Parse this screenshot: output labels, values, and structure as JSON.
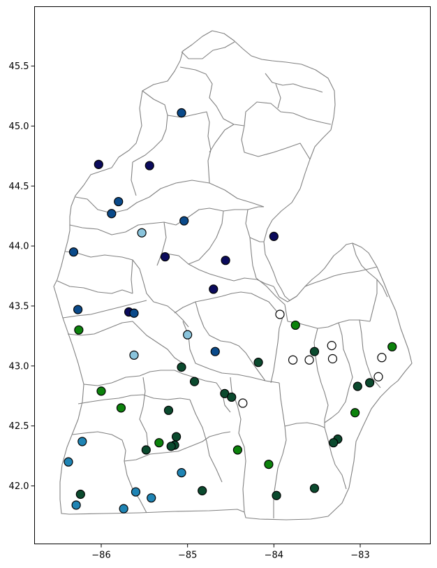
{
  "chart_data": {
    "type": "scatter",
    "title": "",
    "xlabel": "",
    "ylabel": "",
    "xlim": [
      -86.7,
      -82.3
    ],
    "ylim": [
      41.5,
      46.0
    ],
    "xticks": [
      -86,
      -85,
      -84,
      -83
    ],
    "yticks": [
      42.0,
      42.5,
      43.0,
      43.5,
      44.0,
      44.5,
      45.0,
      45.5
    ],
    "x_tick_labels": [
      "−86",
      "−85",
      "−84",
      "−83"
    ],
    "y_tick_labels": [
      "42.0",
      "42.5",
      "43.0",
      "43.5",
      "44.0",
      "44.5",
      "45.0",
      "45.5"
    ],
    "grid": false,
    "legend": "none",
    "basemap": "Michigan Lower Peninsula watershed boundaries",
    "colors": {
      "navy": "#0b0b5c",
      "dark_blue": "#0a4a8a",
      "blue": "#1f84b4",
      "light_blue": "#8ac4dc",
      "dark_green": "#0b4a2e",
      "green": "#0c820c",
      "white": "#ffffff",
      "outline": "#808080"
    },
    "points": [
      {
        "x": -85.07,
        "y": 45.11,
        "color": "dark_blue"
      },
      {
        "x": -86.03,
        "y": 44.68,
        "color": "navy"
      },
      {
        "x": -85.44,
        "y": 44.67,
        "color": "navy"
      },
      {
        "x": -85.8,
        "y": 44.37,
        "color": "dark_blue"
      },
      {
        "x": -85.88,
        "y": 44.27,
        "color": "dark_blue"
      },
      {
        "x": -85.04,
        "y": 44.21,
        "color": "dark_blue"
      },
      {
        "x": -85.53,
        "y": 44.11,
        "color": "light_blue"
      },
      {
        "x": -84.0,
        "y": 44.08,
        "color": "navy"
      },
      {
        "x": -86.32,
        "y": 43.95,
        "color": "dark_blue"
      },
      {
        "x": -85.26,
        "y": 43.91,
        "color": "navy"
      },
      {
        "x": -84.56,
        "y": 43.88,
        "color": "navy"
      },
      {
        "x": -84.7,
        "y": 43.64,
        "color": "navy"
      },
      {
        "x": -86.27,
        "y": 43.47,
        "color": "dark_blue"
      },
      {
        "x": -85.68,
        "y": 43.45,
        "color": "navy"
      },
      {
        "x": -85.62,
        "y": 43.44,
        "color": "dark_blue"
      },
      {
        "x": -83.93,
        "y": 43.43,
        "color": "white"
      },
      {
        "x": -83.75,
        "y": 43.34,
        "color": "green"
      },
      {
        "x": -86.26,
        "y": 43.3,
        "color": "green"
      },
      {
        "x": -85.0,
        "y": 43.26,
        "color": "light_blue"
      },
      {
        "x": -83.33,
        "y": 43.17,
        "color": "white"
      },
      {
        "x": -82.63,
        "y": 43.16,
        "color": "green"
      },
      {
        "x": -84.68,
        "y": 43.12,
        "color": "dark_blue"
      },
      {
        "x": -83.53,
        "y": 43.12,
        "color": "dark_green"
      },
      {
        "x": -85.62,
        "y": 43.09,
        "color": "light_blue"
      },
      {
        "x": -82.75,
        "y": 43.07,
        "color": "white"
      },
      {
        "x": -83.32,
        "y": 43.06,
        "color": "white"
      },
      {
        "x": -83.78,
        "y": 43.05,
        "color": "white"
      },
      {
        "x": -83.59,
        "y": 43.05,
        "color": "white"
      },
      {
        "x": -84.18,
        "y": 43.03,
        "color": "dark_green"
      },
      {
        "x": -85.07,
        "y": 42.99,
        "color": "dark_green"
      },
      {
        "x": -82.79,
        "y": 42.91,
        "color": "white"
      },
      {
        "x": -84.92,
        "y": 42.87,
        "color": "dark_green"
      },
      {
        "x": -82.89,
        "y": 42.86,
        "color": "dark_green"
      },
      {
        "x": -83.03,
        "y": 42.83,
        "color": "dark_green"
      },
      {
        "x": -86.0,
        "y": 42.79,
        "color": "green"
      },
      {
        "x": -84.57,
        "y": 42.77,
        "color": "dark_green"
      },
      {
        "x": -84.49,
        "y": 42.74,
        "color": "dark_green"
      },
      {
        "x": -84.36,
        "y": 42.69,
        "color": "white"
      },
      {
        "x": -85.77,
        "y": 42.65,
        "color": "green"
      },
      {
        "x": -85.22,
        "y": 42.63,
        "color": "dark_green"
      },
      {
        "x": -83.06,
        "y": 42.61,
        "color": "green"
      },
      {
        "x": -85.13,
        "y": 42.41,
        "color": "dark_green"
      },
      {
        "x": -83.26,
        "y": 42.39,
        "color": "dark_green"
      },
      {
        "x": -86.22,
        "y": 42.37,
        "color": "blue"
      },
      {
        "x": -85.33,
        "y": 42.36,
        "color": "green"
      },
      {
        "x": -83.31,
        "y": 42.36,
        "color": "dark_green"
      },
      {
        "x": -85.15,
        "y": 42.34,
        "color": "dark_green"
      },
      {
        "x": -85.19,
        "y": 42.33,
        "color": "dark_green"
      },
      {
        "x": -85.48,
        "y": 42.3,
        "color": "dark_green"
      },
      {
        "x": -84.42,
        "y": 42.3,
        "color": "green"
      },
      {
        "x": -86.38,
        "y": 42.2,
        "color": "blue"
      },
      {
        "x": -84.06,
        "y": 42.18,
        "color": "green"
      },
      {
        "x": -85.07,
        "y": 42.11,
        "color": "blue"
      },
      {
        "x": -83.53,
        "y": 41.98,
        "color": "dark_green"
      },
      {
        "x": -84.83,
        "y": 41.96,
        "color": "dark_green"
      },
      {
        "x": -85.6,
        "y": 41.95,
        "color": "blue"
      },
      {
        "x": -86.24,
        "y": 41.93,
        "color": "dark_green"
      },
      {
        "x": -83.97,
        "y": 41.92,
        "color": "dark_green"
      },
      {
        "x": -85.42,
        "y": 41.9,
        "color": "blue"
      },
      {
        "x": -86.29,
        "y": 41.84,
        "color": "blue"
      },
      {
        "x": -85.74,
        "y": 41.81,
        "color": "blue"
      }
    ]
  }
}
